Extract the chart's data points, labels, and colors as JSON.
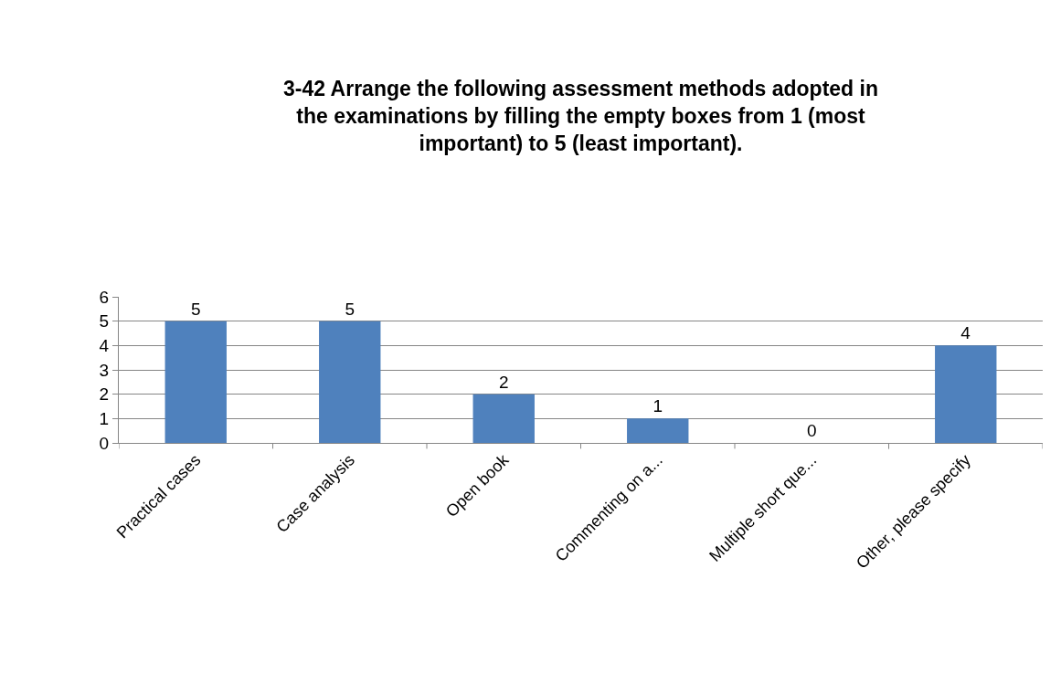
{
  "chart_data": {
    "type": "bar",
    "title": "3-42 Arrange the following assessment methods adopted in the examinations by filling the empty boxes from 1 (most important) to 5 (least important).",
    "categories": [
      "Practical cases",
      "Case analysis",
      "Open book",
      "Commenting on a...",
      "Multiple short que...",
      "Other, please specify"
    ],
    "values": [
      5,
      5,
      2,
      1,
      0,
      4
    ],
    "color": "#4f81bd",
    "ylim": [
      0,
      6
    ],
    "yticks": [
      0,
      1,
      2,
      3,
      4,
      5,
      6
    ],
    "grid": "y",
    "data_labels": true
  }
}
